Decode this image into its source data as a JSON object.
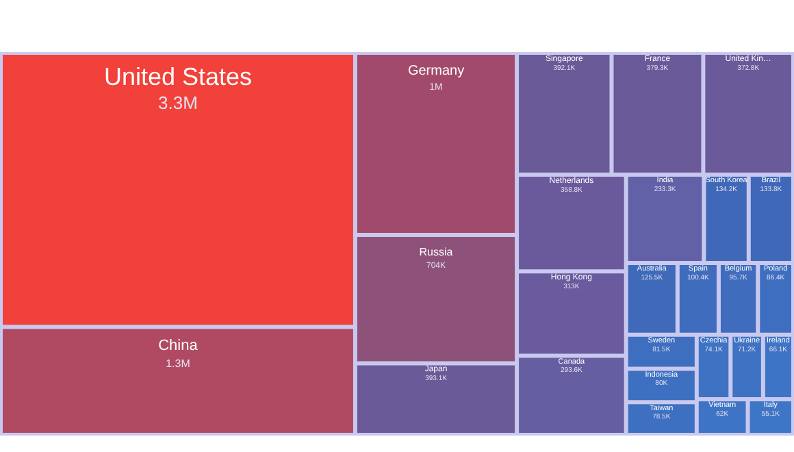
{
  "chart_data": {
    "type": "other",
    "categories": [
      "United States",
      "China",
      "Germany",
      "Russia",
      "Japan",
      "Singapore",
      "France",
      "United Kin…",
      "Netherlands",
      "Hong Kong",
      "Canada",
      "India",
      "South Korea",
      "Brazil",
      "Australia",
      "Spain",
      "Belgium",
      "Poland",
      "Sweden",
      "Indonesia",
      "Taiwan",
      "Czechia",
      "Ukraine",
      "Ireland",
      "Vietnam",
      "Italy"
    ],
    "values": [
      3300000,
      1300000,
      1000000,
      704000,
      393100,
      392100,
      379300,
      372800,
      358800,
      313000,
      293600,
      233300,
      134200,
      133800,
      125500,
      100400,
      95700,
      86400,
      81500,
      80000,
      78500,
      74100,
      71200,
      66100,
      62000,
      55100
    ],
    "value_labels": [
      "3.3M",
      "1.3M",
      "1M",
      "704K",
      "393.1K",
      "392.1K",
      "379.3K",
      "372.8K",
      "358.8K",
      "313K",
      "293.6K",
      "233.3K",
      "134.2K",
      "133.8K",
      "125.5K",
      "100.4K",
      "95.7K",
      "86.4K",
      "81.5K",
      "80K",
      "78.5K",
      "74.1K",
      "71.2K",
      "66.1K",
      "62K",
      "55.1K"
    ],
    "colors": [
      "#f2403a",
      "#b04a62",
      "#a24a6c",
      "#8e527a",
      "#6a5a98",
      "#6a5a98",
      "#6a5a9a",
      "#6a5a9a",
      "#6a5a9c",
      "#6a5a9e",
      "#655fa2",
      "#6260a6",
      "#4068b8",
      "#4068b8",
      "#3f6aba",
      "#3f6cbc",
      "#3f6cbc",
      "#3e6ebf",
      "#3e6ebf",
      "#3e70c1",
      "#3e70c1",
      "#3e72c3",
      "#3e72c3",
      "#3e74c5",
      "#3e74c5",
      "#3e76c7"
    ]
  }
}
